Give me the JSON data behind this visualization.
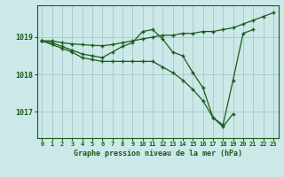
{
  "title": "Graphe pression niveau de la mer (hPa)",
  "bg_color": "#cce8e8",
  "grid_color": "#aacccc",
  "line_color": "#1a5c1a",
  "xlim": [
    -0.5,
    23.5
  ],
  "ylim": [
    1016.3,
    1019.85
  ],
  "yticks": [
    1017,
    1018,
    1019
  ],
  "xticks": [
    0,
    1,
    2,
    3,
    4,
    5,
    6,
    7,
    8,
    9,
    10,
    11,
    12,
    13,
    14,
    15,
    16,
    17,
    18,
    19,
    20,
    21,
    22,
    23
  ],
  "lines": [
    {
      "x": [
        0,
        1,
        2,
        3,
        4,
        5,
        6,
        7,
        8,
        9,
        10,
        11,
        12,
        13,
        14,
        15,
        16,
        17,
        18,
        19,
        20,
        21,
        22,
        23
      ],
      "y": [
        1018.9,
        1018.9,
        1018.85,
        1018.82,
        1018.8,
        1018.78,
        1018.77,
        1018.8,
        1018.85,
        1018.9,
        1018.95,
        1019.0,
        1019.05,
        1019.05,
        1019.1,
        1019.1,
        1019.15,
        1019.15,
        1019.2,
        1019.25,
        1019.35,
        1019.45,
        1019.55,
        1019.65
      ]
    },
    {
      "x": [
        0,
        1,
        2,
        3,
        4,
        5,
        6,
        7,
        8,
        9,
        10,
        11,
        12,
        13,
        14,
        15,
        16,
        17,
        18,
        19,
        20,
        21
      ],
      "y": [
        1018.9,
        1018.85,
        1018.75,
        1018.65,
        1018.55,
        1018.5,
        1018.45,
        1018.6,
        1018.75,
        1018.85,
        1019.15,
        1019.2,
        1018.95,
        1018.6,
        1018.5,
        1018.05,
        1017.65,
        1016.85,
        1016.65,
        1017.85,
        1019.1,
        1019.2
      ]
    },
    {
      "x": [
        0,
        1,
        2,
        3,
        4,
        5,
        6,
        7,
        8,
        9,
        10,
        11,
        12,
        13,
        14,
        15,
        16,
        17,
        18,
        19
      ],
      "y": [
        1018.9,
        1018.8,
        1018.7,
        1018.6,
        1018.45,
        1018.4,
        1018.35,
        1018.35,
        1018.35,
        1018.35,
        1018.35,
        1018.35,
        1018.2,
        1018.05,
        1017.85,
        1017.6,
        1017.3,
        1016.85,
        1016.6,
        1016.95
      ]
    }
  ]
}
